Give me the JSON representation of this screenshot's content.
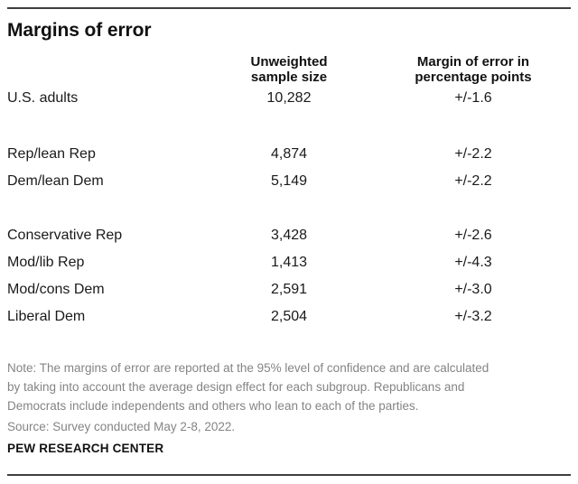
{
  "title": "Margins of error",
  "table": {
    "header_sample_size": "Unweighted\nsample size",
    "header_moe": "Margin of error in\npercentage points"
  },
  "chart_data": {
    "type": "table",
    "title": "Margins of error",
    "columns": [
      "",
      "Unweighted sample size",
      "Margin of error in percentage points"
    ],
    "rows": [
      [
        "U.S. adults",
        "10,282",
        "+/-1.6"
      ],
      [
        "Rep/lean Rep",
        "4,874",
        "+/-2.2"
      ],
      [
        "Dem/lean Dem",
        "5,149",
        "+/-2.2"
      ],
      [
        "Conservative Rep",
        "3,428",
        "+/-2.6"
      ],
      [
        "Mod/lib Rep",
        "1,413",
        "+/-4.3"
      ],
      [
        "Mod/cons Dem",
        "2,591",
        "+/-3.0"
      ],
      [
        "Liberal Dem",
        "2,504",
        "+/-3.2"
      ]
    ],
    "row_groups": [
      [
        0
      ],
      [
        1,
        2
      ],
      [
        3,
        4,
        5,
        6
      ]
    ],
    "layout_hints": {
      "col2_align": "center",
      "col3_align": "center",
      "grid": "off"
    }
  },
  "notes": {
    "lines": [
      "Note: The margins of error are reported at the 95% level of confidence and are calculated",
      "by taking into account the average design effect for each subgroup. Republicans and",
      "Democrats include independents and others who lean to each of the parties."
    ],
    "source": "Source: Survey conducted May 2-8, 2022."
  },
  "footer": {
    "brand": "PEW RESEARCH CENTER"
  },
  "colors": {
    "background": "#ffffff",
    "text": "#1a1a1a",
    "note_text": "#848484",
    "rule": "#3f3f3f"
  }
}
